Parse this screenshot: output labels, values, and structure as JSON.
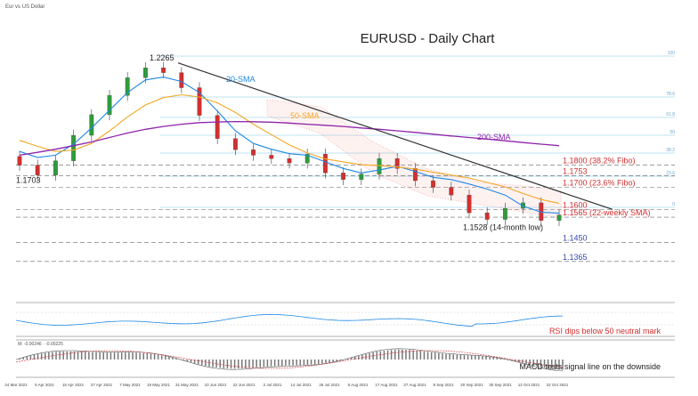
{
  "header": {
    "instrument": "Eur vs US Dollar"
  },
  "chart_data": {
    "type": "line",
    "title": "EURUSD - Daily Chart",
    "price_axis": {
      "ylim": [
        1.13,
        1.2325
      ],
      "grid": false
    },
    "x_tick_labels": [
      "24 Mar 2021",
      "5 Apr 2021",
      "15 Apr 2021",
      "27 Apr 2021",
      "7 May 2021",
      "19 May 2021",
      "31 May 2021",
      "10 Jun 2021",
      "22 Jun 2021",
      "2 Jul 2021",
      "14 Jul 2021",
      "26 Jul 2021",
      "5 Aug 2021",
      "17 Aug 2021",
      "27 Aug 2021",
      "8 Sep 2021",
      "20 Sep 2021",
      "30 Sep 2021",
      "12 Oct 2021",
      "22 Oct 2021"
    ],
    "fibo_levels": [
      "100",
      "78.6",
      "61.8",
      "50",
      "38.2",
      "23.6",
      "0"
    ],
    "key_levels": [
      {
        "value": 1.18,
        "label": "1.1800 (38.2% Fibo)",
        "color": "#d32f2f"
      },
      {
        "value": 1.1753,
        "label": "1.1753",
        "color": "#d32f2f"
      },
      {
        "value": 1.17,
        "label": "1.1700 (23.6% Fibo)",
        "color": "#d32f2f"
      },
      {
        "value": 1.16,
        "label": "1.1600",
        "color": "#d32f2f"
      },
      {
        "value": 1.1565,
        "label": "1.1565 (22-weekly SMA)",
        "color": "#d32f2f"
      },
      {
        "value": 1.145,
        "label": "1.1450",
        "color": "#3949ab"
      },
      {
        "value": 1.1365,
        "label": "1.1365",
        "color": "#3949ab"
      }
    ],
    "price_annotations": [
      {
        "label": "1.2265",
        "value": 1.2265
      },
      {
        "label": "1.1703",
        "value": 1.1703
      },
      {
        "label": "1.1528 (14-month low)",
        "value": 1.1528
      }
    ],
    "indicator_labels": {
      "sma20": {
        "label": "20-SMA",
        "color": "#1e88e5"
      },
      "sma50": {
        "label": "50-SMA",
        "color": "#f5a623"
      },
      "sma200": {
        "label": "200-SMA",
        "color": "#8e24aa"
      }
    },
    "series": [
      {
        "name": "20-SMA",
        "values": [
          1.1862,
          1.1835,
          1.1845,
          1.1895,
          1.1968,
          1.2048,
          1.2128,
          1.2185,
          1.2198,
          1.2178,
          1.2128,
          1.2045,
          1.1955,
          1.1898,
          1.1872,
          1.1852,
          1.1845,
          1.1815,
          1.1785,
          1.1765,
          1.1778,
          1.1795,
          1.1772,
          1.1745,
          1.1735,
          1.1715,
          1.1692,
          1.1665,
          1.1615,
          1.1588,
          1.1583
        ]
      },
      {
        "name": "50-SMA",
        "values": [
          1.1912,
          1.1885,
          1.1862,
          1.1868,
          1.1898,
          1.1955,
          1.2018,
          1.2072,
          1.2105,
          1.2118,
          1.2108,
          1.2082,
          1.2038,
          1.1985,
          1.1938,
          1.1892,
          1.1855,
          1.1828,
          1.1815,
          1.1802,
          1.1798,
          1.1792,
          1.1782,
          1.1768,
          1.1755,
          1.1742,
          1.1722,
          1.1702,
          1.1672,
          1.1645,
          1.1628
        ]
      },
      {
        "name": "200-SMA",
        "values": [
          1.1845,
          1.1858,
          1.1872,
          1.1888,
          1.1905,
          1.1925,
          1.1945,
          1.1962,
          1.1975,
          1.1985,
          1.1992,
          1.1995,
          1.1997,
          1.1996,
          1.1994,
          1.199,
          1.1985,
          1.198,
          1.1975,
          1.1968,
          1.1962,
          1.1955,
          1.1948,
          1.194,
          1.1932,
          1.1925,
          1.1918,
          1.191,
          1.1902,
          1.1895,
          1.1888
        ]
      }
    ],
    "price_close": [
      1.18,
      1.1755,
      1.182,
      1.1935,
      1.2028,
      1.2115,
      1.2195,
      1.224,
      1.2218,
      1.215,
      1.2025,
      1.192,
      1.187,
      1.1845,
      1.183,
      1.181,
      1.185,
      1.1765,
      1.1735,
      1.176,
      1.183,
      1.1785,
      1.173,
      1.17,
      1.1665,
      1.1585,
      1.1555,
      1.1605,
      1.163,
      1.155,
      1.1575
    ],
    "annotations": {
      "rsi": "RSI dips below 50 neutral mark",
      "macd": "MACD tests signal line on the downside"
    }
  }
}
